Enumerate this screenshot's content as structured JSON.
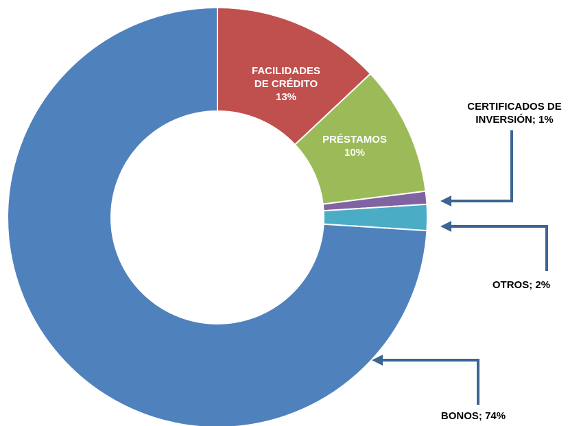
{
  "chart_data": {
    "type": "donut",
    "categories": [
      "FACILIDADES DE CRÉDITO",
      "PRÉSTAMOS",
      "CERTIFICADOS DE INVERSIÓN",
      "OTROS",
      "BONOS"
    ],
    "values": [
      13,
      10,
      1,
      2,
      74
    ],
    "value_labels": [
      "13%",
      "10%",
      "1%",
      "2%",
      "74%"
    ],
    "label_separator": "; ",
    "colors": [
      "#c0504d",
      "#9bbb59",
      "#8064a2",
      "#4bacc6",
      "#4f81bd"
    ]
  }
}
